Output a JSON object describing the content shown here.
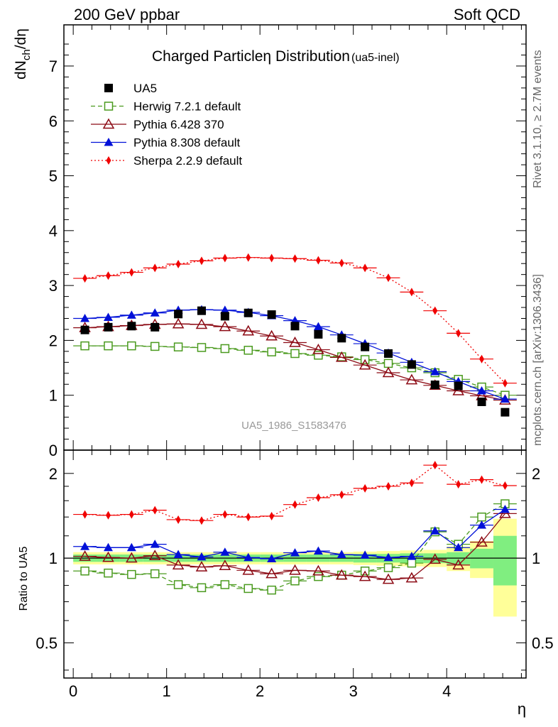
{
  "header": {
    "left": "200 GeV ppbar",
    "right": "Soft QCD"
  },
  "side": {
    "rivet": "Rivet 3.1.10, ≥ 2.7M events",
    "mcplots": "mcplots.cern.ch [arXiv:1306.3436]"
  },
  "chart_data": [
    {
      "type": "scatter",
      "title_main": "Charged Particle",
      "title_eta": "η",
      "title_rest": " Distribution",
      "title_sub": "(ua5-inel)",
      "ylabel": "dN",
      "ylabel_sub": "ch",
      "ylabel_suffix": "/dη",
      "watermark": "UA5_1986_S1583476",
      "xlim": [
        -0.1,
        4.85
      ],
      "ylim": [
        0,
        7.75
      ],
      "yticks": [
        0,
        1,
        2,
        3,
        4,
        5,
        6,
        7
      ],
      "x": [
        0.125,
        0.375,
        0.625,
        0.875,
        1.125,
        1.375,
        1.625,
        1.875,
        2.125,
        2.375,
        2.625,
        2.875,
        3.125,
        3.375,
        3.625,
        3.875,
        4.125,
        4.375,
        4.625
      ],
      "series": [
        {
          "name": "UA5",
          "style": "data",
          "color": "#000000",
          "values": [
            2.19,
            2.24,
            2.26,
            2.24,
            2.48,
            2.54,
            2.44,
            2.5,
            2.47,
            2.26,
            2.11,
            2.04,
            1.88,
            1.76,
            1.56,
            1.19,
            1.17,
            0.88,
            0.69
          ]
        },
        {
          "name": "Herwig 7.2.1 default",
          "style": "herwig",
          "color": "#4a9a1e",
          "values": [
            1.9,
            1.9,
            1.9,
            1.89,
            1.88,
            1.87,
            1.85,
            1.82,
            1.79,
            1.76,
            1.73,
            1.7,
            1.65,
            1.58,
            1.5,
            1.41,
            1.29,
            1.15,
            1.0
          ]
        },
        {
          "name": "Pythia 6.428 370",
          "style": "pythia6",
          "color": "#8c0a14",
          "values": [
            2.23,
            2.25,
            2.27,
            2.29,
            2.3,
            2.29,
            2.25,
            2.17,
            2.08,
            1.96,
            1.83,
            1.69,
            1.55,
            1.41,
            1.28,
            1.18,
            1.08,
            0.99,
            0.91
          ]
        },
        {
          "name": "Pythia 8.308 default",
          "style": "pythia8",
          "color": "#0010d8",
          "values": [
            2.4,
            2.42,
            2.46,
            2.5,
            2.55,
            2.56,
            2.55,
            2.51,
            2.45,
            2.36,
            2.25,
            2.1,
            1.94,
            1.77,
            1.6,
            1.43,
            1.25,
            1.08,
            0.93
          ]
        },
        {
          "name": "Sherpa 2.2.9 default",
          "style": "sherpa",
          "color": "#f00000",
          "values": [
            3.13,
            3.18,
            3.24,
            3.32,
            3.39,
            3.45,
            3.5,
            3.51,
            3.5,
            3.49,
            3.46,
            3.41,
            3.32,
            3.14,
            2.88,
            2.54,
            2.13,
            1.66,
            1.22
          ]
        }
      ]
    },
    {
      "type": "scatter",
      "ylabel": "Ratio to UA5",
      "xlabel": "η",
      "xlim": [
        -0.1,
        4.85
      ],
      "ylim": [
        0.375,
        2.42
      ],
      "yticks": [
        0.5,
        1,
        2
      ],
      "xticks": [
        0,
        1,
        2,
        3,
        4
      ],
      "band_half_width": 0.125,
      "band_inner": [
        0.03,
        0.03,
        0.03,
        0.03,
        0.03,
        0.03,
        0.03,
        0.03,
        0.03,
        0.03,
        0.03,
        0.03,
        0.035,
        0.035,
        0.04,
        0.04,
        0.05,
        0.08,
        0.2
      ],
      "band_outer": [
        0.05,
        0.05,
        0.05,
        0.05,
        0.05,
        0.05,
        0.05,
        0.05,
        0.05,
        0.05,
        0.05,
        0.05,
        0.055,
        0.06,
        0.065,
        0.07,
        0.1,
        0.15,
        0.38
      ],
      "series": [
        {
          "name": "Herwig 7.2.1 default",
          "style": "herwig",
          "color": "#4a9a1e",
          "values": [
            0.9,
            0.885,
            0.875,
            0.88,
            0.805,
            0.785,
            0.805,
            0.78,
            0.77,
            0.83,
            0.86,
            0.87,
            0.9,
            0.925,
            0.96,
            1.24,
            1.12,
            1.4,
            1.56
          ]
        },
        {
          "name": "Pythia 6.428 370",
          "style": "pythia6",
          "color": "#8c0a14",
          "values": [
            1.015,
            1.005,
            1.0,
            1.02,
            0.945,
            0.93,
            0.94,
            0.905,
            0.88,
            0.905,
            0.9,
            0.87,
            0.86,
            0.84,
            0.85,
            0.99,
            0.945,
            1.14,
            1.44
          ]
        },
        {
          "name": "Pythia 8.308 default",
          "style": "pythia8",
          "color": "#0010d8",
          "values": [
            1.1,
            1.09,
            1.09,
            1.12,
            1.03,
            1.01,
            1.05,
            1.005,
            0.995,
            1.045,
            1.06,
            1.03,
            1.025,
            1.005,
            1.015,
            1.25,
            1.09,
            1.31,
            1.49
          ]
        },
        {
          "name": "Sherpa 2.2.9 default",
          "style": "sherpa",
          "color": "#f00000",
          "values": [
            1.43,
            1.42,
            1.43,
            1.48,
            1.37,
            1.36,
            1.43,
            1.4,
            1.41,
            1.55,
            1.64,
            1.68,
            1.77,
            1.8,
            1.85,
            2.14,
            1.83,
            1.9,
            1.81
          ]
        }
      ]
    }
  ]
}
